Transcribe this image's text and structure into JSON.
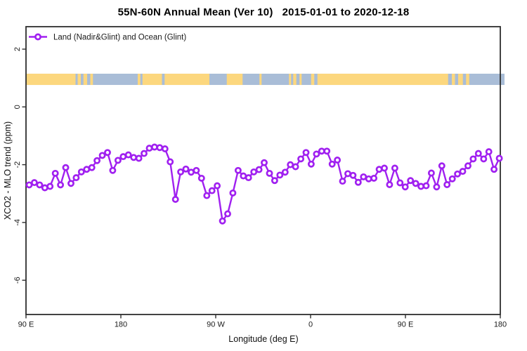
{
  "chart_data": {
    "type": "line",
    "title": "55N-60N Annual Mean (Ver 10)   2015-01-01 to 2020-12-18",
    "xlabel": "Longitude (deg E)",
    "ylabel": "XCO2 - MLO trend (ppm)",
    "grid": "off",
    "legend_position": "top-left-inside",
    "legend": [
      {
        "label": "Land (Nadir&Glint) and Ocean (Glint)",
        "color": "#A020F0",
        "marker": "open-circle"
      }
    ],
    "x_axis": {
      "units": "degrees longitude, wrapping eastward from 90E",
      "range_deg": [
        90,
        540
      ],
      "ticks": [
        {
          "pos": 90,
          "label": "90 E"
        },
        {
          "pos": 180,
          "label": "180"
        },
        {
          "pos": 270,
          "label": "90 W"
        },
        {
          "pos": 360,
          "label": "0"
        },
        {
          "pos": 450,
          "label": "90 E"
        },
        {
          "pos": 540,
          "label": "180"
        }
      ]
    },
    "y_axis": {
      "units": "ppm",
      "range_ppm": [
        -7.19,
        2.78
      ],
      "ticks": [
        {
          "pos": 2,
          "label": "2"
        },
        {
          "pos": 0,
          "label": "0"
        },
        {
          "pos": -2,
          "label": "-2"
        },
        {
          "pos": -4,
          "label": "-4"
        },
        {
          "pos": -6,
          "label": "-6"
        }
      ]
    },
    "series": [
      {
        "name": "Land (Nadir&Glint) and Ocean (Glint)",
        "color": "#A020F0",
        "marker": "open-circle",
        "lon_start_deg": 93.0,
        "lon_step_deg": 4.956,
        "values_ppm": [
          -2.7,
          -2.62,
          -2.7,
          -2.8,
          -2.75,
          -2.3,
          -2.7,
          -2.1,
          -2.65,
          -2.45,
          -2.25,
          -2.16,
          -2.1,
          -1.86,
          -1.68,
          -1.58,
          -2.2,
          -1.85,
          -1.72,
          -1.66,
          -1.75,
          -1.78,
          -1.61,
          -1.43,
          -1.39,
          -1.41,
          -1.45,
          -1.9,
          -3.2,
          -2.25,
          -2.15,
          -2.26,
          -2.2,
          -2.47,
          -3.07,
          -2.9,
          -2.73,
          -3.95,
          -3.7,
          -2.98,
          -2.2,
          -2.39,
          -2.45,
          -2.25,
          -2.17,
          -1.93,
          -2.3,
          -2.55,
          -2.36,
          -2.26,
          -2.0,
          -2.07,
          -1.8,
          -1.58,
          -1.98,
          -1.63,
          -1.53,
          -1.53,
          -1.98,
          -1.84,
          -2.57,
          -2.31,
          -2.37,
          -2.61,
          -2.42,
          -2.49,
          -2.47,
          -2.16,
          -2.12,
          -2.69,
          -2.12,
          -2.63,
          -2.77,
          -2.55,
          -2.65,
          -2.75,
          -2.73,
          -2.29,
          -2.77,
          -2.04,
          -2.69,
          -2.49,
          -2.32,
          -2.23,
          -2.04,
          -1.8,
          -1.61,
          -1.8,
          -1.55,
          -2.16,
          -1.78
        ]
      }
    ],
    "map_strip": {
      "description": "land/ocean mask band for latitude 55N-60N drawn across the plot",
      "band_ppm": [
        0.76,
        1.15
      ],
      "extent_deg": [
        90.5,
        544
      ],
      "ocean_color": "#A9BDD7",
      "land_color": "#FCD77E",
      "land_segments_deg": [
        [
          90.5,
          137
        ],
        [
          139,
          142
        ],
        [
          144.5,
          148
        ],
        [
          151,
          153.5
        ],
        [
          196,
          198.5
        ],
        [
          200.5,
          219
        ],
        [
          221.5,
          264
        ],
        [
          280.5,
          295.5
        ],
        [
          311.5,
          313.5
        ],
        [
          339.5,
          341.5
        ],
        [
          343.5,
          346.5
        ],
        [
          349.5,
          351.5
        ],
        [
          360.5,
          363.5
        ],
        [
          366.5,
          490.5
        ],
        [
          494,
          497
        ],
        [
          500,
          504.5
        ],
        [
          507.5,
          510.5
        ]
      ]
    },
    "frame_color": "#2d2d2d"
  }
}
